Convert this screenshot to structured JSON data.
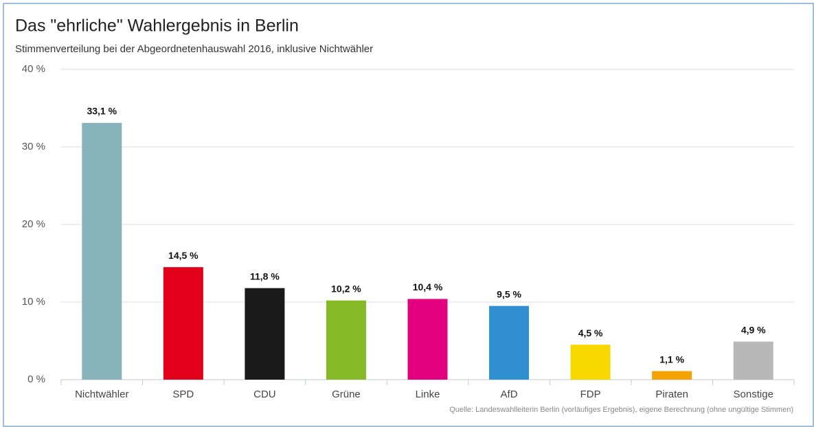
{
  "chart_data": {
    "type": "bar",
    "title": "Das \"ehrliche\" Wahlergebnis in Berlin",
    "subtitle": "Stimmenverteilung bei der Abgeordnetenhauswahl 2016, inklusive Nichtwähler",
    "categories": [
      "Nichtwähler",
      "SPD",
      "CDU",
      "Grüne",
      "Linke",
      "AfD",
      "FDP",
      "Piraten",
      "Sonstige"
    ],
    "values": [
      33.1,
      14.5,
      11.8,
      10.2,
      10.4,
      9.5,
      4.5,
      1.1,
      4.9
    ],
    "value_labels": [
      "33,1 %",
      "14,5 %",
      "11,8 %",
      "10,2 %",
      "10,4 %",
      "9,5 %",
      "4,5 %",
      "1,1 %",
      "4,9 %"
    ],
    "colors": [
      "#87b3ba",
      "#e2001a",
      "#1a1a1a",
      "#86bb27",
      "#e3007e",
      "#2f8fd0",
      "#f9d800",
      "#f4a200",
      "#b8b8b8"
    ],
    "ylim": [
      0,
      40
    ],
    "yticks": [
      {
        "value": 0,
        "label": "0 %"
      },
      {
        "value": 10,
        "label": "10 %"
      },
      {
        "value": 20,
        "label": "20 %"
      },
      {
        "value": 30,
        "label": "30 %"
      },
      {
        "value": 40,
        "label": "40 %"
      }
    ],
    "grid": true,
    "source": "Quelle: Landeswahlleiterin Berlin (vorläufiges Ergebnis), eigene Berechnung (ohne ungültige Stimmen)"
  }
}
